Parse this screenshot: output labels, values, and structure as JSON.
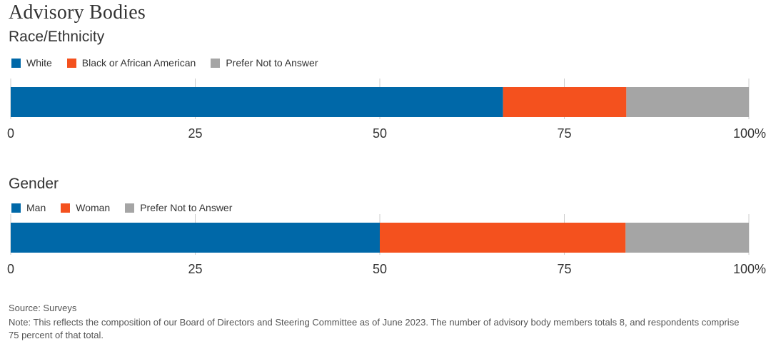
{
  "title": "Advisory Bodies",
  "source": "Source: Surveys",
  "note": "Note: This reflects the composition of our Board of Directors and Steering Committee as of June 2023. The number of advisory body members totals 8, and respondents comprise 75 percent of that total.",
  "colors": {
    "blue": "#0068a8",
    "orange": "#f4511e",
    "gray": "#a5a5a5",
    "grid": "#cccccc"
  },
  "chart_data": [
    {
      "type": "bar",
      "orientation": "horizontal-stacked",
      "title": "Race/Ethnicity",
      "series": [
        {
          "name": "White",
          "value": 66.7,
          "color": "#0068a8"
        },
        {
          "name": "Black or African American",
          "value": 16.7,
          "color": "#f4511e"
        },
        {
          "name": "Prefer Not to Answer",
          "value": 16.6,
          "color": "#a5a5a5"
        }
      ],
      "xlim": [
        0,
        100
      ],
      "ticks": [
        "0",
        "25",
        "50",
        "75",
        "100%"
      ],
      "tick_values": [
        0,
        25,
        50,
        75,
        100
      ],
      "grid": true,
      "legend_position": "top-left"
    },
    {
      "type": "bar",
      "orientation": "horizontal-stacked",
      "title": "Gender",
      "series": [
        {
          "name": "Man",
          "value": 50,
          "color": "#0068a8"
        },
        {
          "name": "Woman",
          "value": 33.3,
          "color": "#f4511e"
        },
        {
          "name": "Prefer Not to Answer",
          "value": 16.7,
          "color": "#a5a5a5"
        }
      ],
      "xlim": [
        0,
        100
      ],
      "ticks": [
        "0",
        "25",
        "50",
        "75",
        "100%"
      ],
      "tick_values": [
        0,
        25,
        50,
        75,
        100
      ],
      "grid": true,
      "legend_position": "top-left"
    }
  ]
}
